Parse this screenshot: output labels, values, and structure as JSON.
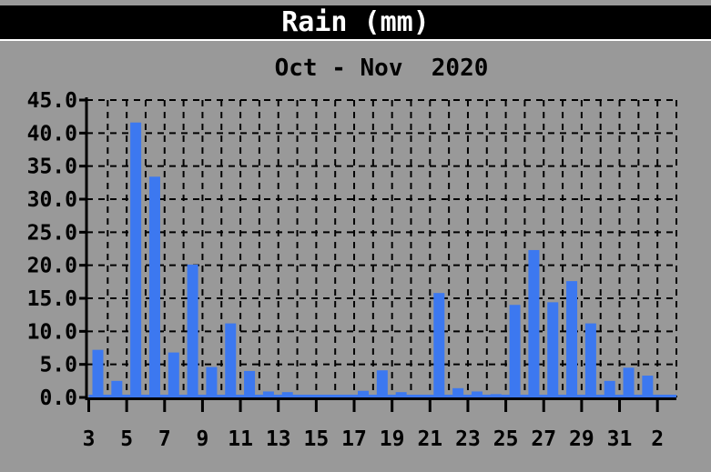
{
  "header": {
    "title": "Rain (mm)"
  },
  "subtitle": "Oct - Nov  2020",
  "colors": {
    "background": "#999999",
    "title_bar": "#000000",
    "title_text": "#ffffff",
    "bar": "#3c78f0",
    "axis": "#000000",
    "separator": "#ffffff"
  },
  "chart_data": {
    "type": "bar",
    "title": "Rain (mm)",
    "subtitle": "Oct - Nov  2020",
    "xlabel": "",
    "ylabel": "",
    "ylim": [
      0,
      45
    ],
    "y_tick_step": 5,
    "y_tick_labels": [
      "0.0",
      "5.0",
      "10.0",
      "15.0",
      "20.0",
      "25.0",
      "30.0",
      "35.0",
      "40.0",
      "45.0"
    ],
    "x_tick_labels": [
      "3",
      "5",
      "7",
      "9",
      "11",
      "13",
      "15",
      "17",
      "19",
      "21",
      "23",
      "25",
      "27",
      "29",
      "31",
      "2"
    ],
    "grid": "dashed-both-axes",
    "legend": "none",
    "categories": [
      "Oct 3",
      "Oct 4",
      "Oct 5",
      "Oct 6",
      "Oct 7",
      "Oct 8",
      "Oct 9",
      "Oct 10",
      "Oct 11",
      "Oct 12",
      "Oct 13",
      "Oct 14",
      "Oct 15",
      "Oct 16",
      "Oct 17",
      "Oct 18",
      "Oct 19",
      "Oct 20",
      "Oct 21",
      "Oct 22",
      "Oct 23",
      "Oct 24",
      "Oct 25",
      "Oct 26",
      "Oct 27",
      "Oct 28",
      "Oct 29",
      "Oct 30",
      "Oct 31",
      "Nov 1",
      "Nov 2"
    ],
    "values": [
      7.2,
      2.5,
      41.6,
      33.4,
      6.8,
      20.1,
      4.6,
      11.2,
      4.0,
      0.9,
      0.8,
      0.4,
      0.2,
      0.0,
      1.0,
      4.1,
      0.8,
      0.4,
      15.8,
      1.4,
      0.9,
      0.5,
      14.0,
      22.3,
      14.4,
      17.6,
      11.2,
      2.5,
      4.5,
      3.3,
      0.4
    ]
  }
}
